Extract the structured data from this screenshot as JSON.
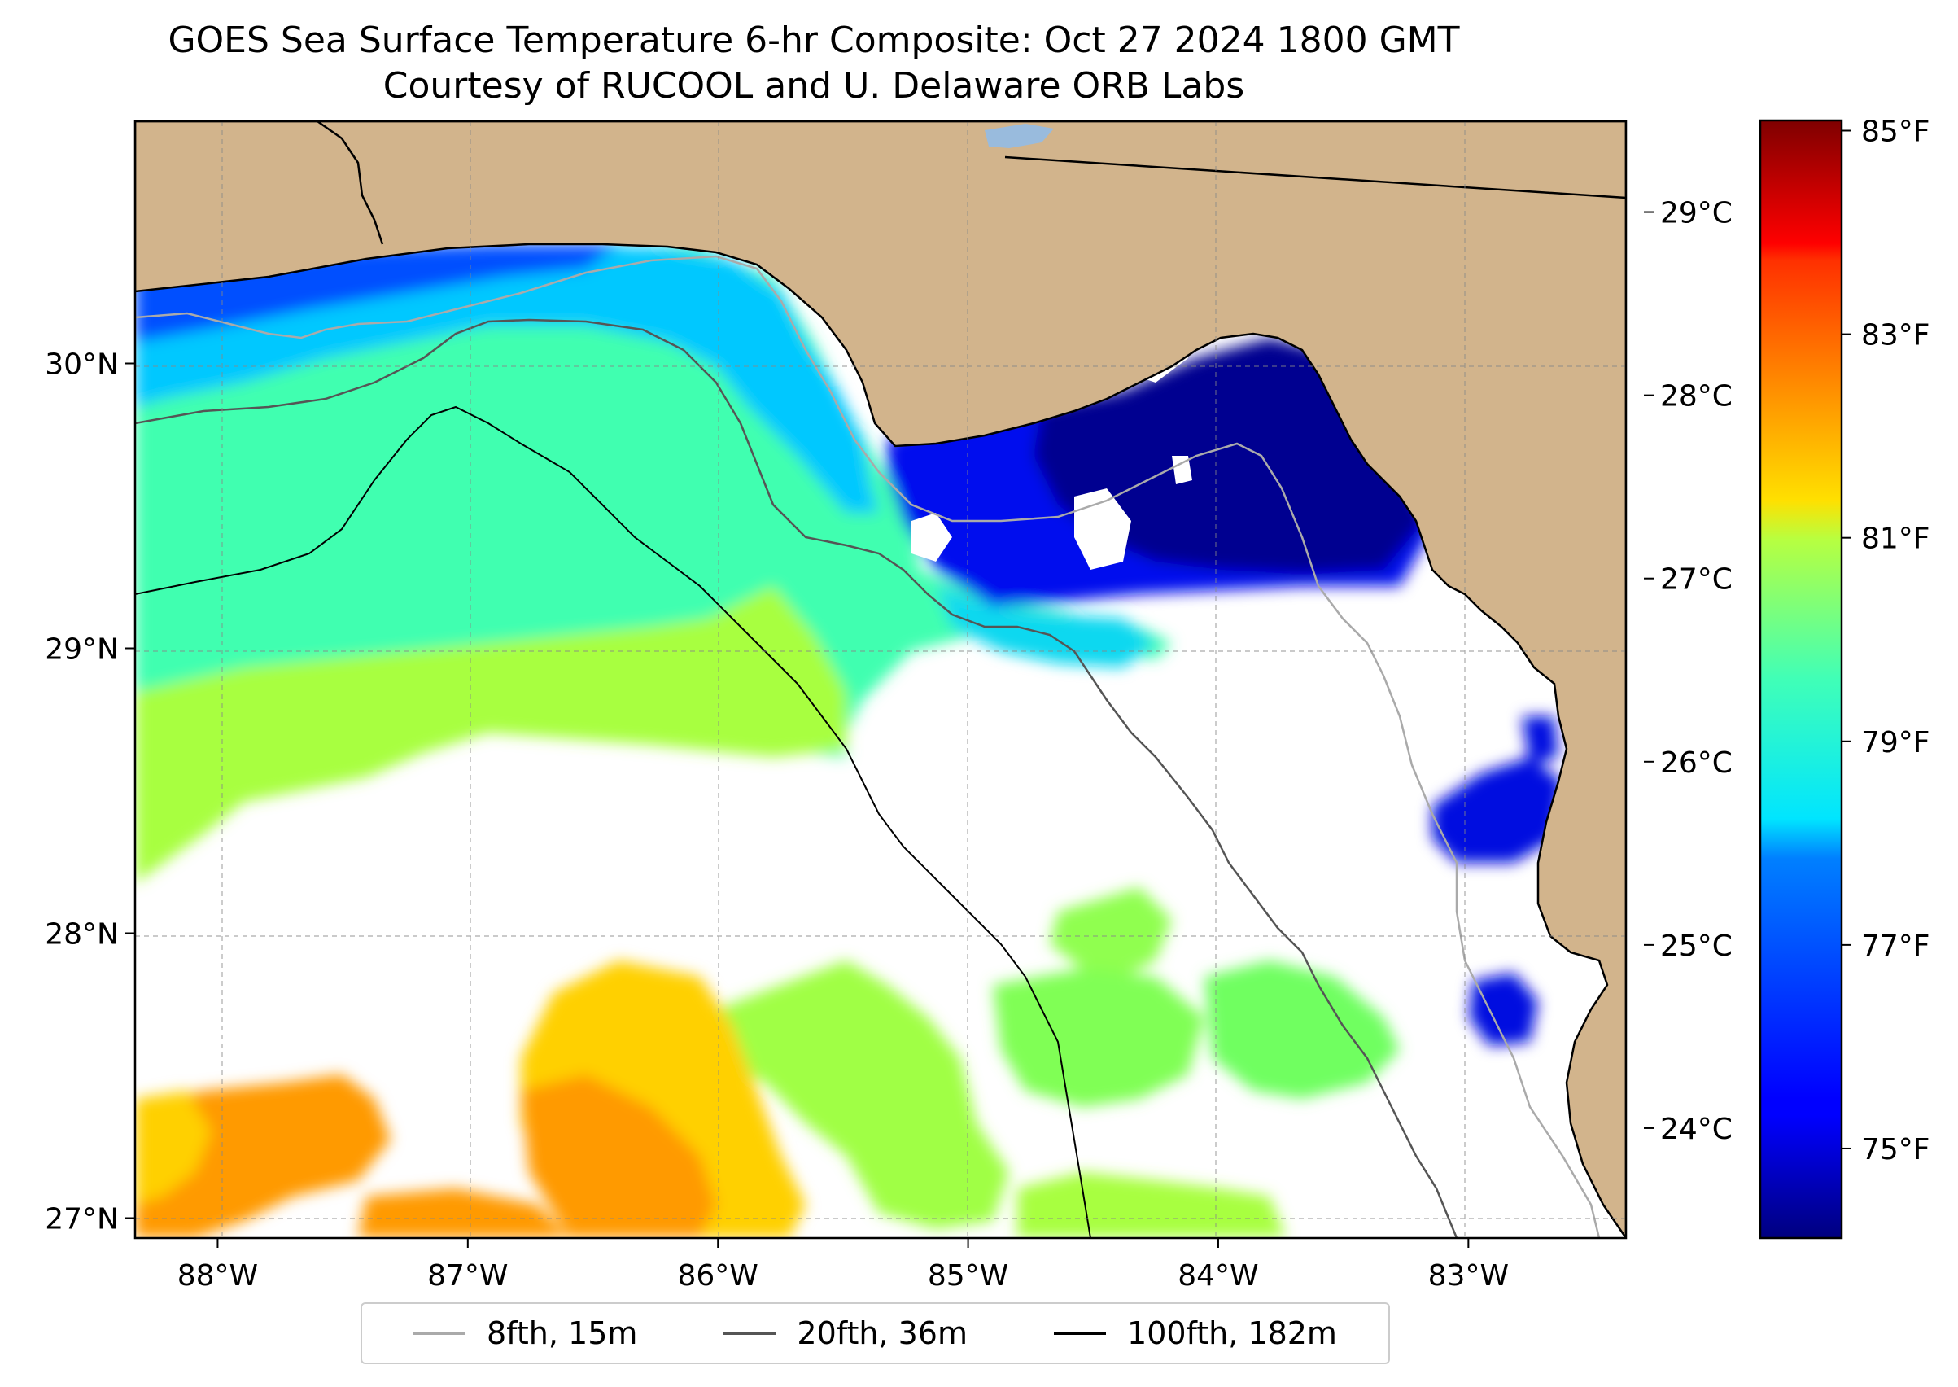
{
  "title_line1": "GOES Sea Surface Temperature 6-hr Composite: Oct 27 2024 1800 GMT",
  "title_line2": "Courtesy of RUCOOL and U. Delaware ORB Labs",
  "map": {
    "lon_range": [
      -88.33,
      -82.37
    ],
    "lat_range": [
      26.93,
      30.85
    ],
    "lon_ticks": [
      {
        "value": -88,
        "label": "88°W"
      },
      {
        "value": -87,
        "label": "87°W"
      },
      {
        "value": -86,
        "label": "86°W"
      },
      {
        "value": -85,
        "label": "85°W"
      },
      {
        "value": -84,
        "label": "84°W"
      },
      {
        "value": -83,
        "label": "83°W"
      }
    ],
    "lat_ticks": [
      {
        "value": 30,
        "label": "30°N"
      },
      {
        "value": 29,
        "label": "29°N"
      },
      {
        "value": 28,
        "label": "28°N"
      },
      {
        "value": 27,
        "label": "27°N"
      }
    ],
    "land_color": "#d2b48c",
    "nodata_color": "#ffffff",
    "gridlines": "dashed"
  },
  "colorbar": {
    "colormap": "jet",
    "range_c": [
      23.4,
      29.5
    ],
    "celsius_ticks": [
      {
        "value": 29,
        "label": "29°C"
      },
      {
        "value": 28,
        "label": "28°C"
      },
      {
        "value": 27,
        "label": "27°C"
      },
      {
        "value": 26,
        "label": "26°C"
      },
      {
        "value": 25,
        "label": "25°C"
      },
      {
        "value": 24,
        "label": "24°C"
      }
    ],
    "fahrenheit_ticks": [
      {
        "value": 85,
        "label": "85°F"
      },
      {
        "value": 83,
        "label": "83°F"
      },
      {
        "value": 81,
        "label": "81°F"
      },
      {
        "value": 79,
        "label": "79°F"
      },
      {
        "value": 77,
        "label": "77°F"
      },
      {
        "value": 75,
        "label": "75°F"
      }
    ]
  },
  "legend": [
    {
      "label": "8fth, 15m",
      "color": "#aaaaaa"
    },
    {
      "label": "20fth, 36m",
      "color": "#555555"
    },
    {
      "label": "100fth, 182m",
      "color": "#000000"
    }
  ]
}
